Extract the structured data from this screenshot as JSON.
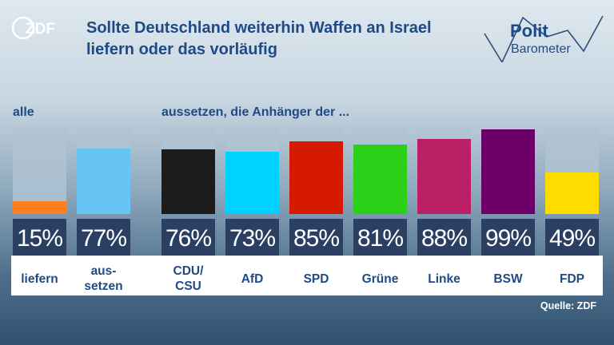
{
  "header": {
    "logo_text": "ZDF",
    "title": "Sollte Deutschland weiterhin Waffen an Israel liefern oder das vorläufig",
    "politbarometer_logo": {
      "line1": "Polit",
      "line2": "Barometer"
    }
  },
  "group_labels": {
    "all": "alle",
    "supporters": "aussetzen, die Anhänger der ..."
  },
  "source": "Quelle: ZDF",
  "colors": {
    "title": "#1f4a86",
    "value_box": "#2a3f62",
    "liefern": "#ff7f1e",
    "aussetzen": "#67c4f4",
    "CDU/CSU": "#1c1c1c",
    "AfD": "#00d2ff",
    "SPD": "#d61a00",
    "Grüne": "#2bd118",
    "Linke": "#bb1f66",
    "BSW": "#6c0068",
    "FDP": "#ffdc00"
  },
  "chart_data": {
    "type": "bar",
    "title": "Sollte Deutschland weiterhin Waffen an Israel liefern oder das vorläufig aussetzen, die Anhänger der ...",
    "ylim": [
      0,
      100
    ],
    "unit": "%",
    "categories": [
      "liefern",
      "aus-setzen",
      "CDU/CSU",
      "AfD",
      "SPD",
      "Grüne",
      "Linke",
      "BSW",
      "FDP"
    ],
    "display_labels": [
      "liefern",
      "aus-\nsetzen",
      "CDU/\nCSU",
      "AfD",
      "SPD",
      "Grüne",
      "Linke",
      "BSW",
      "FDP"
    ],
    "values": [
      15,
      77,
      76,
      73,
      85,
      81,
      88,
      99,
      49
    ],
    "value_labels": [
      "15%",
      "77%",
      "76%",
      "73%",
      "85%",
      "81%",
      "88%",
      "99%",
      "49%"
    ],
    "groups": [
      {
        "label": "alle",
        "categories": [
          "liefern",
          "aus-setzen"
        ]
      },
      {
        "label": "aussetzen, die Anhänger der ...",
        "categories": [
          "CDU/CSU",
          "AfD",
          "SPD",
          "Grüne",
          "Linke",
          "BSW",
          "FDP"
        ]
      }
    ]
  }
}
